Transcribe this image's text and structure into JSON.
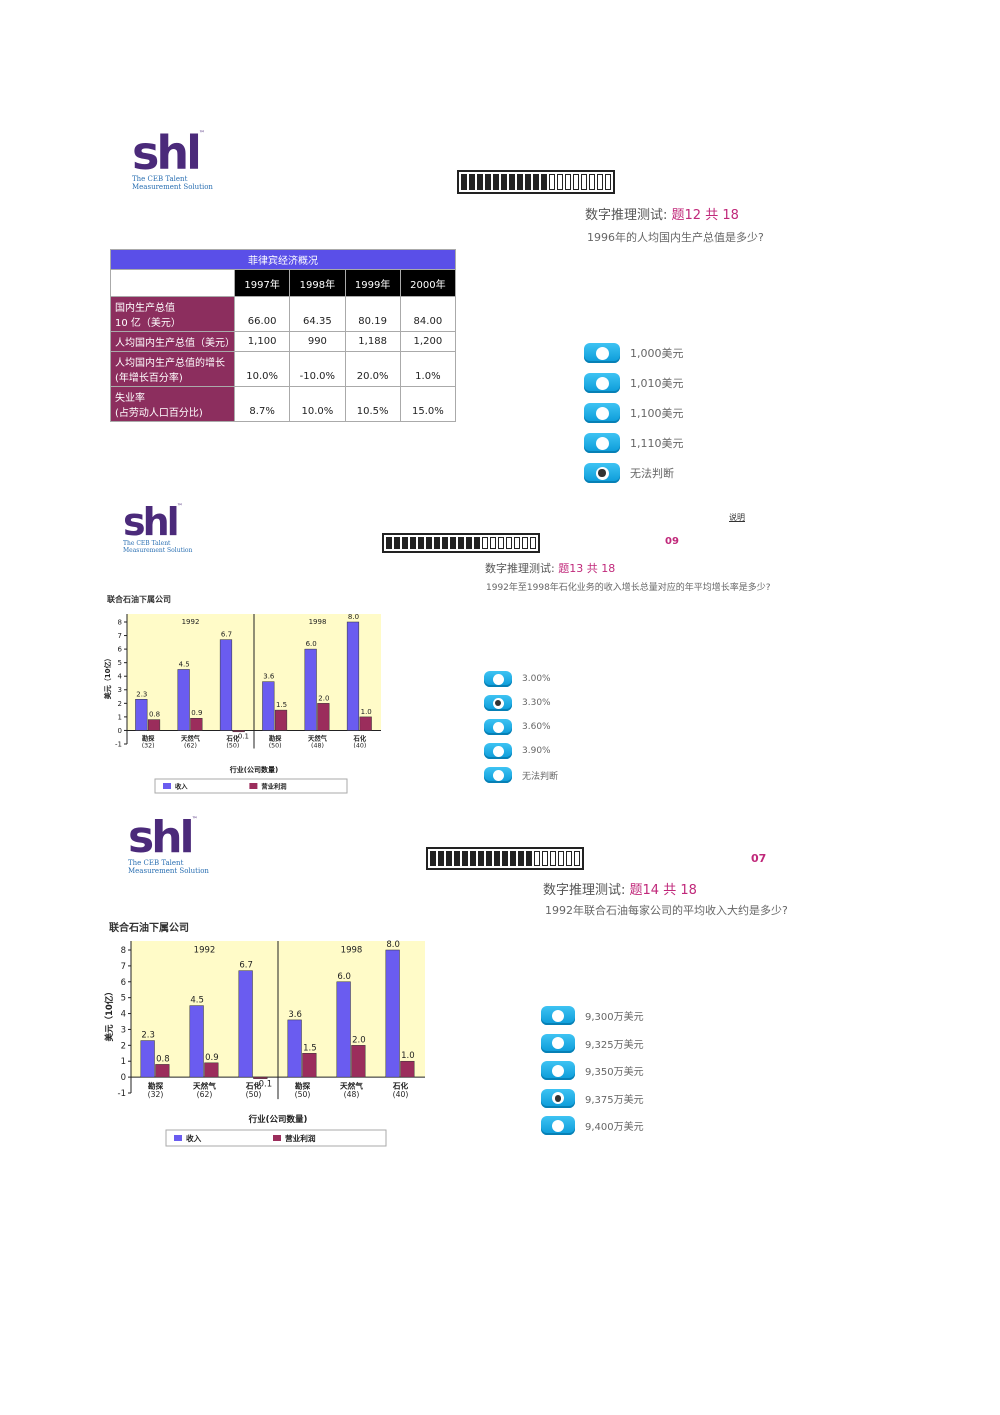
{
  "brand": {
    "logo_word": "shl",
    "tm": "™",
    "tagline_1": "The CEB Talent",
    "tagline_2": "Measurement Solution"
  },
  "q1": {
    "title_prefix": "数字推理测试: ",
    "title_num": "题12 共 18",
    "question": "1996年的人均国内生产总值是多少?",
    "progress_total": 19,
    "progress_done": 11,
    "table": {
      "caption": "菲律宾经济概况",
      "years": [
        "1997年",
        "1998年",
        "1999年",
        "2000年"
      ],
      "rows": [
        {
          "label_1": "国内生产总值",
          "label_2": "10 亿（美元）",
          "values": [
            "66.00",
            "64.35",
            "80.19",
            "84.00"
          ]
        },
        {
          "label_1": "人均国内生产总值（美元）",
          "label_2": "",
          "values": [
            "1,100",
            "990",
            "1,188",
            "1,200"
          ]
        },
        {
          "label_1": "人均国内生产总值的增长",
          "label_2": "(年增长百分率)",
          "values": [
            "10.0%",
            "-10.0%",
            "20.0%",
            "1.0%"
          ]
        },
        {
          "label_1": "失业率",
          "label_2": "(占劳动人口百分比)",
          "values": [
            "8.7%",
            "10.0%",
            "10.5%",
            "15.0%"
          ]
        }
      ]
    },
    "options": [
      "1,000美元",
      "1,010美元",
      "1,100美元",
      "1,110美元",
      "无法判断"
    ],
    "selected": 4
  },
  "q2": {
    "help_link": "说明",
    "timer": "09",
    "title_prefix": "数字推理测试: ",
    "title_num": "题13 共 18",
    "question": "1992年至1998年石化业务的收入增长总量对应的年平均增长率是多少?",
    "progress_total": 19,
    "progress_done": 12,
    "options": [
      "3.00%",
      "3.30%",
      "3.60%",
      "3.90%",
      "无法判断"
    ],
    "selected": 1
  },
  "q3": {
    "timer": "07",
    "title_prefix": "数字推理测试: ",
    "title_num": "题14 共 18",
    "question": "1992年联合石油每家公司的平均收入大约是多少?",
    "progress_total": 19,
    "progress_done": 13,
    "options": [
      "9,300万美元",
      "9,325万美元",
      "9,350万美元",
      "9,375万美元",
      "9,400万美元"
    ],
    "selected": 3
  },
  "chart_data": {
    "type": "bar",
    "title": "联合石油下属公司",
    "panels": [
      "1992",
      "1998"
    ],
    "categories": [
      [
        "勘探",
        "(32)"
      ],
      [
        "天然气",
        "(62)"
      ],
      [
        "石化",
        "(50)"
      ],
      [
        "勘探",
        "(50)"
      ],
      [
        "天然气",
        "(48)"
      ],
      [
        "石化",
        "(40)"
      ]
    ],
    "series": [
      {
        "name": "收入",
        "values": [
          2.3,
          4.5,
          6.7,
          3.6,
          6.0,
          8.0
        ],
        "labels": [
          "2.3",
          "4.5",
          "6.7",
          "3.6",
          "6.0",
          "8.0"
        ],
        "color": "#6a5cf0"
      },
      {
        "name": "营业利润",
        "values": [
          0.8,
          0.9,
          -0.1,
          1.5,
          2.0,
          1.0
        ],
        "labels": [
          "0.8",
          "0.9",
          "-0.1",
          "1.5",
          "2.0",
          "1.0"
        ],
        "color": "#9b2d5c"
      }
    ],
    "xlabel": "行业(公司数量)",
    "ylabel": "美元（10亿）",
    "ylim": [
      -1,
      8
    ],
    "yticks": [
      "-1",
      "0",
      "1",
      "2",
      "3",
      "4",
      "5",
      "6",
      "7",
      "8"
    ],
    "background": "#fffbc8"
  }
}
